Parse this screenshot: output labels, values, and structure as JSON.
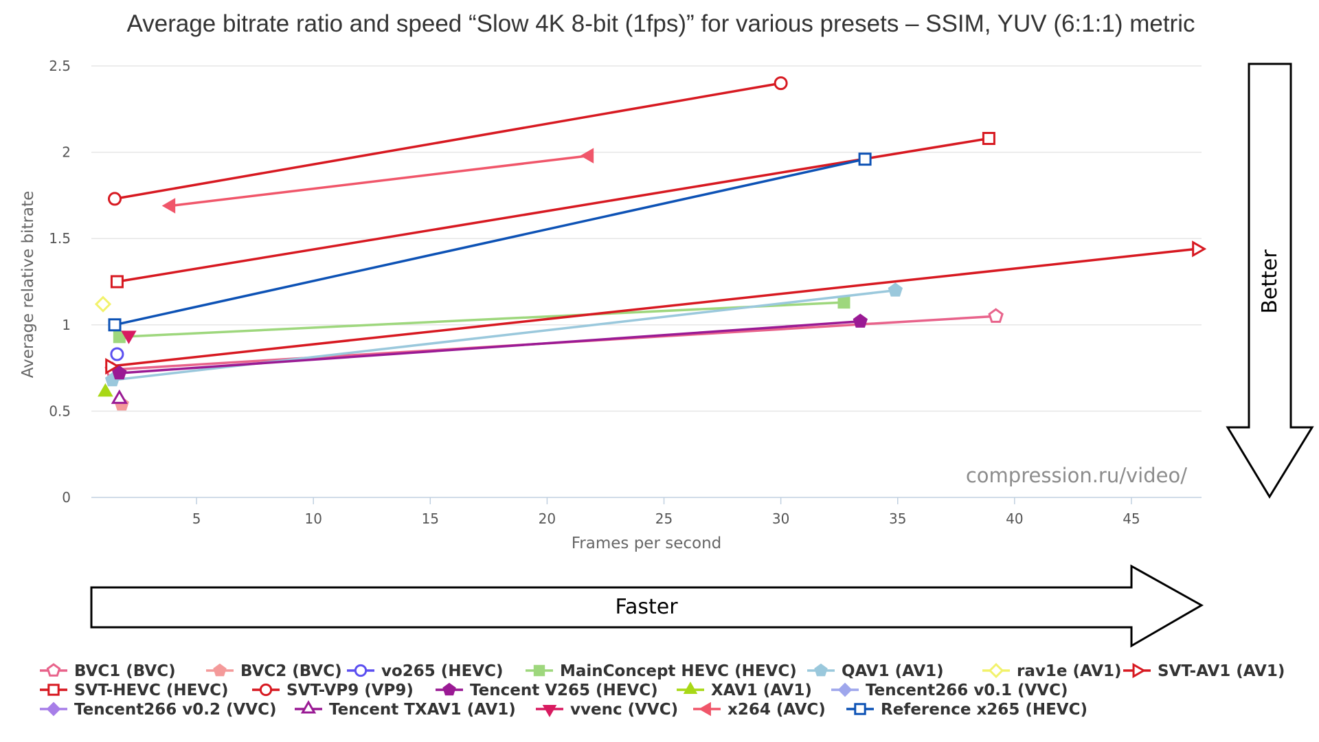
{
  "chart_data": {
    "type": "line",
    "title": "Average bitrate ratio and speed “Slow 4K 8-bit (1fps)” for various presets – SSIM, YUV (6:1:1) metric",
    "xlabel": "Frames per second",
    "ylabel": "Average relative bitrate",
    "xlim": [
      0.5,
      48
    ],
    "ylim": [
      0,
      2.5
    ],
    "xticks": [
      5,
      10,
      15,
      20,
      25,
      30,
      35,
      40,
      45
    ],
    "yticks": [
      0,
      0.5,
      1,
      1.5,
      2,
      2.5
    ],
    "grid": "horizontal",
    "legend_position": "bottom",
    "watermark": "compression.ru/video/",
    "annotations": {
      "speed_arrow": "Faster",
      "quality_arrow": "Better"
    },
    "series": [
      {
        "name": "BVC1 (BVC)",
        "color": "#e8638b",
        "marker": "pentagon-open",
        "x": [
          1.4,
          39.2
        ],
        "y": [
          0.74,
          1.05
        ]
      },
      {
        "name": "BVC2 (BVC)",
        "color": "#f49a9a",
        "marker": "pentagon",
        "x": [
          1.8
        ],
        "y": [
          0.54
        ]
      },
      {
        "name": "vo265 (HEVC)",
        "color": "#5b4ff0",
        "marker": "circle-open",
        "x": [
          1.6
        ],
        "y": [
          0.83
        ]
      },
      {
        "name": "MainConcept HEVC (HEVC)",
        "color": "#9ed77d",
        "marker": "square",
        "x": [
          1.7,
          32.7
        ],
        "y": [
          0.93,
          1.13
        ]
      },
      {
        "name": "QAV1 (AV1)",
        "color": "#9ac8dc",
        "marker": "pentagon",
        "x": [
          1.4,
          34.9
        ],
        "y": [
          0.68,
          1.2
        ]
      },
      {
        "name": "rav1e (AV1)",
        "color": "#f2f26b",
        "marker": "diamond-open",
        "x": [
          1.0
        ],
        "y": [
          1.12
        ]
      },
      {
        "name": "SVT-AV1 (AV1)",
        "color": "#d71921",
        "marker": "triangle-right-open",
        "x": [
          1.3,
          47.8
        ],
        "y": [
          0.76,
          1.44
        ]
      },
      {
        "name": "SVT-HEVC (HEVC)",
        "color": "#d71921",
        "marker": "square-open",
        "x": [
          1.6,
          38.9
        ],
        "y": [
          1.25,
          2.08
        ]
      },
      {
        "name": "SVT-VP9 (VP9)",
        "color": "#d71921",
        "marker": "circle-open",
        "x": [
          1.5,
          30.0
        ],
        "y": [
          1.73,
          2.4
        ]
      },
      {
        "name": "Tencent V265 (HEVC)",
        "color": "#9a1a94",
        "marker": "pentagon",
        "x": [
          1.7,
          33.4
        ],
        "y": [
          0.72,
          1.02
        ]
      },
      {
        "name": "XAV1 (AV1)",
        "color": "#a8d816",
        "marker": "triangle",
        "x": [
          1.1
        ],
        "y": [
          0.61
        ]
      },
      {
        "name": "Tencent266 v0.1 (VVC)",
        "color": "#9ea6ec",
        "marker": "diamond",
        "x": [],
        "y": []
      },
      {
        "name": "Tencent266 v0.2 (VVC)",
        "color": "#a77ee8",
        "marker": "diamond",
        "x": [],
        "y": []
      },
      {
        "name": "Tencent TXAV1 (AV1)",
        "color": "#9a1a94",
        "marker": "triangle-open",
        "x": [
          1.7
        ],
        "y": [
          0.57
        ]
      },
      {
        "name": "vvenc (VVC)",
        "color": "#d81b60",
        "marker": "triangle-down",
        "x": [
          2.1
        ],
        "y": [
          0.94
        ]
      },
      {
        "name": "x264 (AVC)",
        "color": "#f0566a",
        "marker": "triangle-left",
        "x": [
          3.9,
          21.8
        ],
        "y": [
          1.69,
          1.98
        ]
      },
      {
        "name": "Reference x265 (HEVC)",
        "color": "#0d52b5",
        "marker": "square-open",
        "x": [
          1.5,
          33.6
        ],
        "y": [
          1.0,
          1.96
        ]
      }
    ]
  }
}
